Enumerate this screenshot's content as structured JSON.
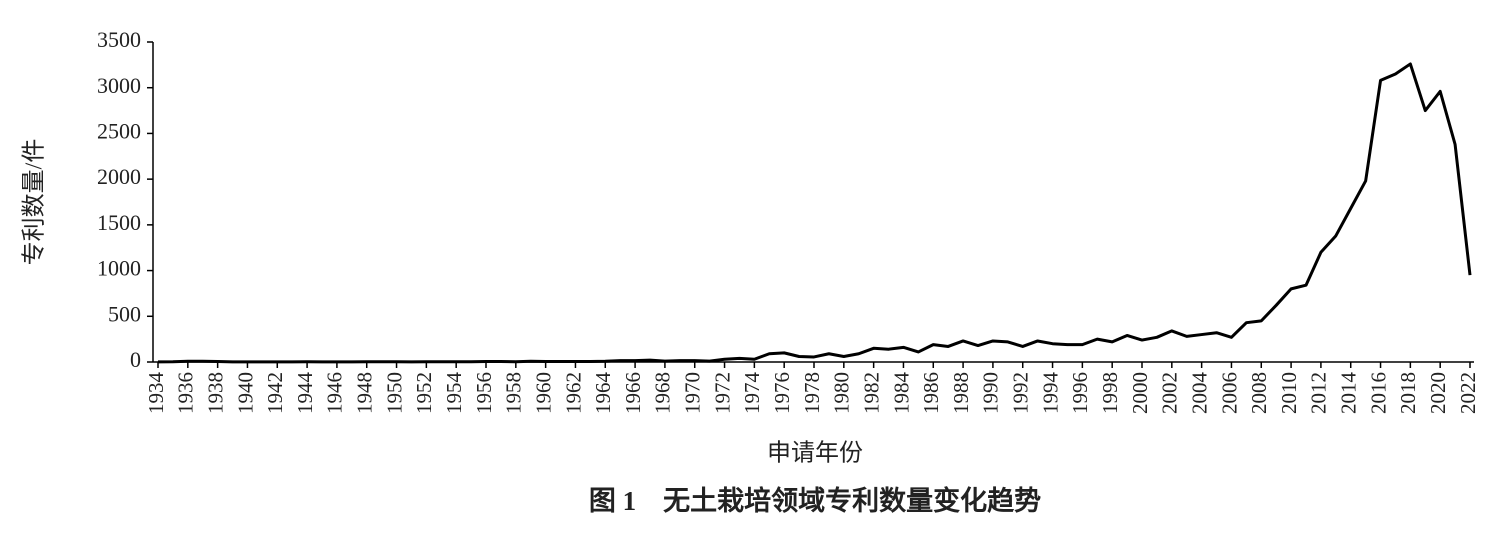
{
  "chart_data": {
    "type": "line",
    "title": "图 1　无土栽培领域专利数量变化趋势",
    "x_label": "申请年份",
    "y_label": "专利数量/件",
    "color": "#000000",
    "x": [
      1934,
      1935,
      1936,
      1937,
      1938,
      1939,
      1940,
      1941,
      1942,
      1943,
      1944,
      1945,
      1946,
      1947,
      1948,
      1949,
      1950,
      1951,
      1952,
      1953,
      1954,
      1955,
      1956,
      1957,
      1958,
      1959,
      1960,
      1961,
      1962,
      1963,
      1964,
      1965,
      1966,
      1967,
      1968,
      1969,
      1970,
      1971,
      1972,
      1973,
      1974,
      1975,
      1976,
      1977,
      1978,
      1979,
      1980,
      1981,
      1982,
      1983,
      1984,
      1985,
      1986,
      1987,
      1988,
      1989,
      1990,
      1991,
      1992,
      1993,
      1994,
      1995,
      1996,
      1997,
      1998,
      1999,
      2000,
      2001,
      2002,
      2003,
      2004,
      2005,
      2006,
      2007,
      2008,
      2009,
      2010,
      2011,
      2012,
      2013,
      2014,
      2015,
      2016,
      2017,
      2018,
      2019,
      2020,
      2021,
      2022
    ],
    "values": [
      2,
      3,
      8,
      8,
      5,
      2,
      2,
      2,
      2,
      2,
      3,
      2,
      2,
      2,
      3,
      3,
      3,
      2,
      3,
      3,
      3,
      3,
      5,
      5,
      3,
      8,
      5,
      5,
      5,
      5,
      8,
      15,
      15,
      20,
      10,
      15,
      15,
      10,
      30,
      40,
      30,
      90,
      100,
      60,
      55,
      90,
      60,
      90,
      150,
      140,
      160,
      110,
      190,
      170,
      230,
      180,
      230,
      220,
      170,
      230,
      200,
      190,
      190,
      250,
      220,
      290,
      240,
      270,
      340,
      280,
      300,
      320,
      270,
      430,
      450,
      620,
      800,
      840,
      1200,
      1380,
      1680,
      1980,
      3080,
      3150,
      3260,
      2750,
      2960,
      2380,
      950
    ],
    "xlim": [
      1934,
      2022
    ],
    "xticks": [
      1934,
      1936,
      1938,
      1940,
      1942,
      1944,
      1946,
      1948,
      1950,
      1952,
      1954,
      1956,
      1958,
      1960,
      1962,
      1964,
      1966,
      1968,
      1970,
      1972,
      1974,
      1976,
      1978,
      1980,
      1982,
      1984,
      1986,
      1988,
      1990,
      1992,
      1994,
      1996,
      1998,
      2000,
      2002,
      2004,
      2006,
      2008,
      2010,
      2012,
      2014,
      2016,
      2018,
      2020,
      2022
    ],
    "ylim": [
      0,
      3500
    ],
    "yticks": [
      0,
      500,
      1000,
      1500,
      2000,
      2500,
      3000,
      3500
    ]
  }
}
